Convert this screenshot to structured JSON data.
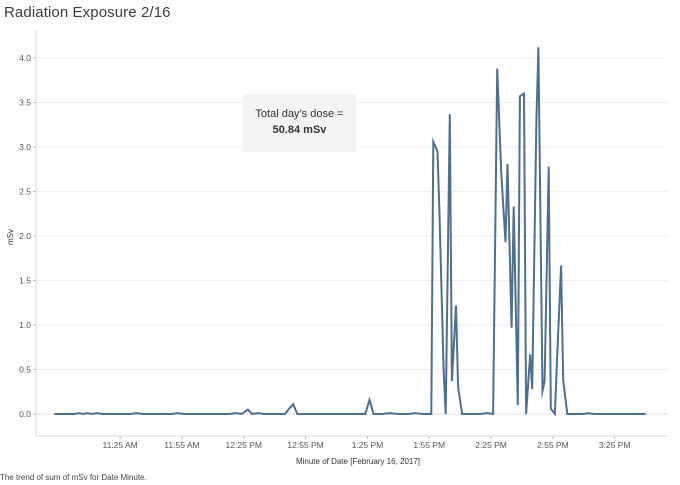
{
  "title": "Radiation Exposure 2/16",
  "caption": "The trend of sum of mSv for Date Minute.",
  "annotation": {
    "line1": "Total day’s dose =",
    "line2": "50.84 mSv"
  },
  "chart_data": {
    "type": "line",
    "xlabel": "Minute of Date [February 16, 2017]",
    "ylabel": "mSv",
    "ylim": [
      0,
      4.3
    ],
    "yticks": [
      0.0,
      0.5,
      1.0,
      1.5,
      2.0,
      2.5,
      3.0,
      3.5,
      4.0
    ],
    "ytick_labels": [
      "0.0",
      "0.5",
      "1.0",
      "1.5",
      "2.0",
      "2.5",
      "3.0",
      "3.5",
      "4.0"
    ],
    "xtick_minutes": [
      685,
      715,
      745,
      775,
      805,
      835,
      865,
      895,
      925
    ],
    "xtick_labels": [
      "11:25 AM",
      "11:55 AM",
      "12:25 PM",
      "12:55 PM",
      "1:25 PM",
      "1:55 PM",
      "2:25 PM",
      "2:55 PM",
      "3:25 PM"
    ],
    "xlim_minutes": [
      650,
      947
    ],
    "line_color": "#4e6f8e",
    "grid": "horizontal",
    "series": [
      {
        "values": [
          {
            "t": "10:53 AM",
            "y": 0.0
          },
          {
            "t": "10:58 AM",
            "y": 0.0
          },
          {
            "t": "11:03 AM",
            "y": 0.0
          },
          {
            "t": "11:05 AM",
            "y": 0.01
          },
          {
            "t": "11:07 AM",
            "y": 0.0
          },
          {
            "t": "11:09 AM",
            "y": 0.01
          },
          {
            "t": "11:11 AM",
            "y": 0.0
          },
          {
            "t": "11:14 AM",
            "y": 0.01
          },
          {
            "t": "11:16 AM",
            "y": 0.0
          },
          {
            "t": "11:20 AM",
            "y": 0.0
          },
          {
            "t": "11:25 AM",
            "y": 0.0
          },
          {
            "t": "11:30 AM",
            "y": 0.0
          },
          {
            "t": "11:33 AM",
            "y": 0.01
          },
          {
            "t": "11:36 AM",
            "y": 0.0
          },
          {
            "t": "11:40 AM",
            "y": 0.0
          },
          {
            "t": "11:45 AM",
            "y": 0.0
          },
          {
            "t": "11:50 AM",
            "y": 0.0
          },
          {
            "t": "11:53 AM",
            "y": 0.01
          },
          {
            "t": "11:56 AM",
            "y": 0.0
          },
          {
            "t": "12:00 PM",
            "y": 0.0
          },
          {
            "t": "12:05 PM",
            "y": 0.0
          },
          {
            "t": "12:10 PM",
            "y": 0.0
          },
          {
            "t": "12:15 PM",
            "y": 0.0
          },
          {
            "t": "12:18 PM",
            "y": 0.0
          },
          {
            "t": "12:21 PM",
            "y": 0.01
          },
          {
            "t": "12:24 PM",
            "y": 0.0
          },
          {
            "t": "12:27 PM",
            "y": 0.05
          },
          {
            "t": "12:29 PM",
            "y": 0.0
          },
          {
            "t": "12:32 PM",
            "y": 0.01
          },
          {
            "t": "12:35 PM",
            "y": 0.0
          },
          {
            "t": "12:40 PM",
            "y": 0.0
          },
          {
            "t": "12:45 PM",
            "y": 0.0
          },
          {
            "t": "12:47 PM",
            "y": 0.06
          },
          {
            "t": "12:49 PM",
            "y": 0.11
          },
          {
            "t": "12:51 PM",
            "y": 0.0
          },
          {
            "t": "12:55 PM",
            "y": 0.0
          },
          {
            "t": "1:00 PM",
            "y": 0.0
          },
          {
            "t": "1:05 PM",
            "y": 0.0
          },
          {
            "t": "1:10 PM",
            "y": 0.0
          },
          {
            "t": "1:15 PM",
            "y": 0.0
          },
          {
            "t": "1:20 PM",
            "y": 0.0
          },
          {
            "t": "1:24 PM",
            "y": 0.0
          },
          {
            "t": "1:26 PM",
            "y": 0.16
          },
          {
            "t": "1:28 PM",
            "y": 0.0
          },
          {
            "t": "1:32 PM",
            "y": 0.0
          },
          {
            "t": "1:36 PM",
            "y": 0.01
          },
          {
            "t": "1:40 PM",
            "y": 0.0
          },
          {
            "t": "1:45 PM",
            "y": 0.0
          },
          {
            "t": "1:48 PM",
            "y": 0.01
          },
          {
            "t": "1:52 PM",
            "y": 0.0
          },
          {
            "t": "1:56 PM",
            "y": 0.0
          },
          {
            "t": "1:57 PM",
            "y": 3.06
          },
          {
            "t": "1:59 PM",
            "y": 2.95
          },
          {
            "t": "2:00 PM",
            "y": 2.25
          },
          {
            "t": "2:02 PM",
            "y": 0.5
          },
          {
            "t": "2:03 PM",
            "y": 0.0
          },
          {
            "t": "2:05 PM",
            "y": 3.37
          },
          {
            "t": "2:06 PM",
            "y": 0.37
          },
          {
            "t": "2:08 PM",
            "y": 1.22
          },
          {
            "t": "2:09 PM",
            "y": 0.3
          },
          {
            "t": "2:11 PM",
            "y": 0.0
          },
          {
            "t": "2:15 PM",
            "y": 0.0
          },
          {
            "t": "2:20 PM",
            "y": 0.0
          },
          {
            "t": "2:23 PM",
            "y": 0.01
          },
          {
            "t": "2:26 PM",
            "y": 0.0
          },
          {
            "t": "2:28 PM",
            "y": 3.88
          },
          {
            "t": "2:30 PM",
            "y": 2.7
          },
          {
            "t": "2:32 PM",
            "y": 1.93
          },
          {
            "t": "2:33 PM",
            "y": 2.81
          },
          {
            "t": "2:35 PM",
            "y": 0.97
          },
          {
            "t": "2:36 PM",
            "y": 2.33
          },
          {
            "t": "2:38 PM",
            "y": 0.1
          },
          {
            "t": "2:39 PM",
            "y": 3.57
          },
          {
            "t": "2:41 PM",
            "y": 3.6
          },
          {
            "t": "2:42 PM",
            "y": 0.0
          },
          {
            "t": "2:44 PM",
            "y": 0.67
          },
          {
            "t": "2:45 PM",
            "y": 0.28
          },
          {
            "t": "2:47 PM",
            "y": 3.3
          },
          {
            "t": "2:48 PM",
            "y": 4.12
          },
          {
            "t": "2:50 PM",
            "y": 0.26
          },
          {
            "t": "2:51 PM",
            "y": 0.37
          },
          {
            "t": "2:53 PM",
            "y": 2.78
          },
          {
            "t": "2:54 PM",
            "y": 0.06
          },
          {
            "t": "2:56 PM",
            "y": 0.0
          },
          {
            "t": "2:57 PM",
            "y": 0.6
          },
          {
            "t": "2:59 PM",
            "y": 1.67
          },
          {
            "t": "3:00 PM",
            "y": 0.38
          },
          {
            "t": "3:02 PM",
            "y": 0.0
          },
          {
            "t": "3:06 PM",
            "y": 0.0
          },
          {
            "t": "3:10 PM",
            "y": 0.0
          },
          {
            "t": "3:12 PM",
            "y": 0.01
          },
          {
            "t": "3:15 PM",
            "y": 0.0
          },
          {
            "t": "3:20 PM",
            "y": 0.0
          },
          {
            "t": "3:25 PM",
            "y": 0.0
          },
          {
            "t": "3:30 PM",
            "y": 0.0
          },
          {
            "t": "3:35 PM",
            "y": 0.0
          },
          {
            "t": "3:40 PM",
            "y": 0.0
          }
        ]
      }
    ]
  }
}
